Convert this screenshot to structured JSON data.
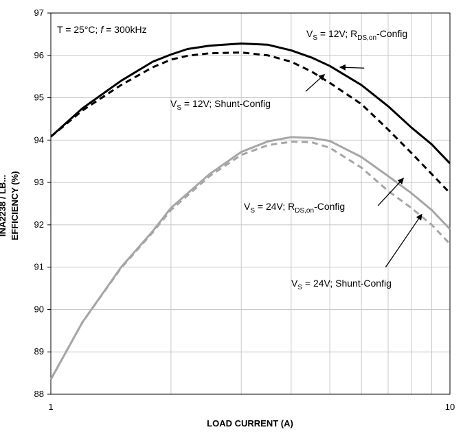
{
  "chart_data": {
    "type": "line",
    "xscale": "log",
    "xlim": [
      1,
      10
    ],
    "ylim": [
      88,
      97
    ],
    "xticks": [
      1,
      10
    ],
    "xtick_labels": [
      "1",
      "10"
    ],
    "yticks": [
      88,
      89,
      90,
      91,
      92,
      93,
      94,
      95,
      96,
      97
    ],
    "ytick_labels": [
      "88",
      "89",
      "90",
      "91",
      "92",
      "93",
      "94",
      "95",
      "96",
      "97"
    ],
    "xlabel": "LOAD CURRENT (A)",
    "ylabel": "EFFICIENCY (%)",
    "side_label": "INA2238 / LB...",
    "grid": true,
    "colors": {
      "black": "#000000",
      "gray": "#a6a6a6"
    },
    "conditions": {
      "text_a": "T = 25°C; ",
      "italic": "f",
      "text_b": " = 300kHz"
    },
    "series": [
      {
        "color": "#000000",
        "dash": "solid",
        "x": [
          1,
          1.2,
          1.5,
          1.8,
          2,
          2.2,
          2.5,
          3,
          3.5,
          4,
          4.5,
          5,
          6,
          7,
          8,
          9,
          10
        ],
        "y": [
          94.08,
          94.75,
          95.4,
          95.85,
          96.02,
          96.15,
          96.23,
          96.28,
          96.25,
          96.12,
          95.95,
          95.75,
          95.3,
          94.8,
          94.3,
          93.9,
          93.45
        ]
      },
      {
        "color": "#000000",
        "dash": "dashed",
        "x": [
          1,
          1.2,
          1.5,
          1.8,
          2,
          2.2,
          2.5,
          3,
          3.5,
          4,
          4.5,
          5,
          6,
          7,
          8,
          9,
          10
        ],
        "y": [
          94.08,
          94.7,
          95.3,
          95.72,
          95.9,
          95.99,
          96.05,
          96.07,
          96.0,
          95.85,
          95.62,
          95.35,
          94.85,
          94.25,
          93.7,
          93.2,
          92.75
        ]
      },
      {
        "color": "#a6a6a6",
        "dash": "solid",
        "x": [
          1,
          1.2,
          1.5,
          1.8,
          2,
          2.5,
          3,
          3.5,
          4,
          4.5,
          5,
          6,
          7,
          8,
          9,
          10
        ],
        "y": [
          88.35,
          89.7,
          91.0,
          91.85,
          92.4,
          93.2,
          93.72,
          93.97,
          94.07,
          94.05,
          93.98,
          93.6,
          93.15,
          92.75,
          92.35,
          91.9
        ]
      },
      {
        "color": "#a6a6a6",
        "dash": "dashed",
        "x": [
          1,
          1.2,
          1.5,
          1.8,
          2,
          2.5,
          3,
          3.5,
          4,
          4.5,
          5,
          6,
          7,
          8,
          9,
          10
        ],
        "y": [
          88.35,
          89.7,
          90.98,
          91.82,
          92.35,
          93.15,
          93.65,
          93.88,
          93.96,
          93.95,
          93.82,
          93.35,
          92.8,
          92.4,
          92.0,
          91.55
        ]
      }
    ],
    "annotations": [
      {
        "pre": "V",
        "sub1": "S",
        "mid": " = 12V; R",
        "sub2": "DS,on",
        "post": "-Config",
        "arrow_from": [
          6.1,
          95.7
        ],
        "arrow_to": [
          5.3,
          95.72
        ]
      },
      {
        "pre": "V",
        "sub1": "S",
        "mid": " = 12V; Shunt-Config",
        "sub2": "",
        "post": "",
        "arrow_from": [
          4.35,
          95.15
        ],
        "arrow_to": [
          4.85,
          95.55
        ]
      },
      {
        "pre": "V",
        "sub1": "S",
        "mid": " = 24V; R",
        "sub2": "DS,on",
        "post": "-Config",
        "arrow_from": [
          6.6,
          92.45
        ],
        "arrow_to": [
          7.65,
          93.1
        ]
      },
      {
        "pre": "V",
        "sub1": "S",
        "mid": " = 24V; Shunt-Config",
        "sub2": "",
        "post": "",
        "arrow_from": [
          6.9,
          91.0
        ],
        "arrow_to": [
          8.5,
          92.25
        ]
      }
    ]
  }
}
